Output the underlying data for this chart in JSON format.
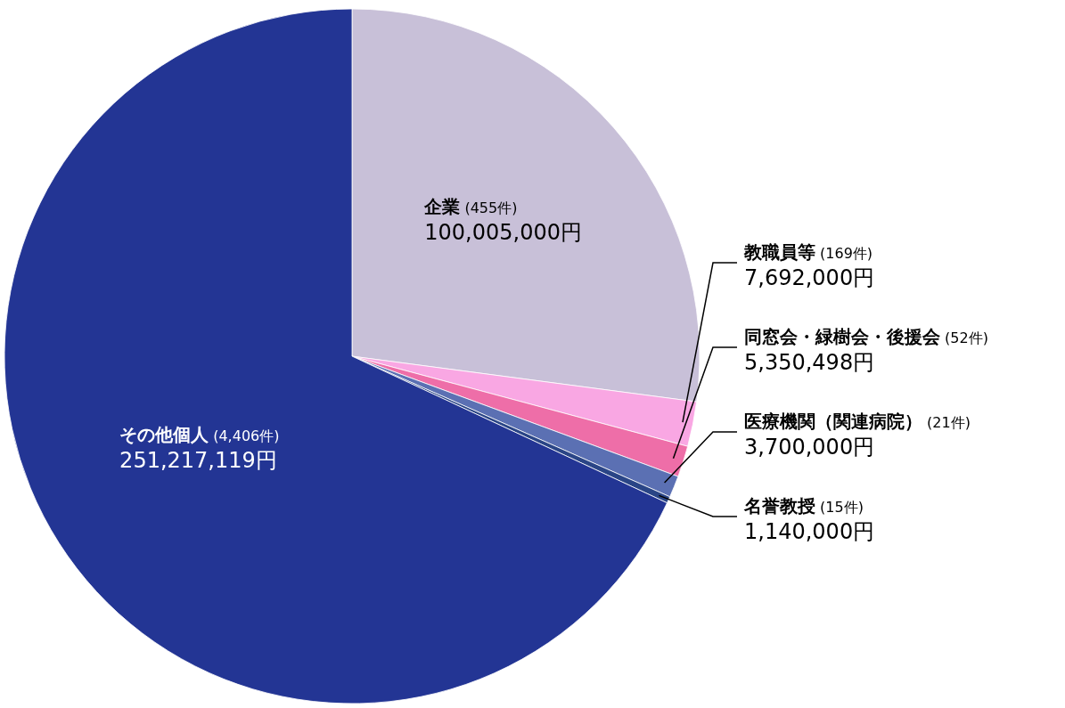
{
  "chart_data": {
    "type": "pie",
    "categories": [
      "**企業** (455件)",
      "**教職員等** (169件)",
      "**同窓会・緑樹会・後援会** (52件)",
      "**医療機関（関連病院）** (21件)",
      "**名誉教授** (15件)",
      "**その他個人** (4,406件)"
    ],
    "values": [
      100005000,
      7692000,
      5350498,
      3700000,
      1140000,
      251217119
    ],
    "value_labels": [
      "100,005,000円",
      "7,692,000円",
      "5,350,498円",
      "3,700,000円",
      "1,140,000円",
      "251,217,119円"
    ],
    "colors": [
      "#c8c0d8",
      "#f9a7e3",
      "#ee6ea8",
      "#5b70b3",
      "#2a4586",
      "#233594"
    ]
  }
}
